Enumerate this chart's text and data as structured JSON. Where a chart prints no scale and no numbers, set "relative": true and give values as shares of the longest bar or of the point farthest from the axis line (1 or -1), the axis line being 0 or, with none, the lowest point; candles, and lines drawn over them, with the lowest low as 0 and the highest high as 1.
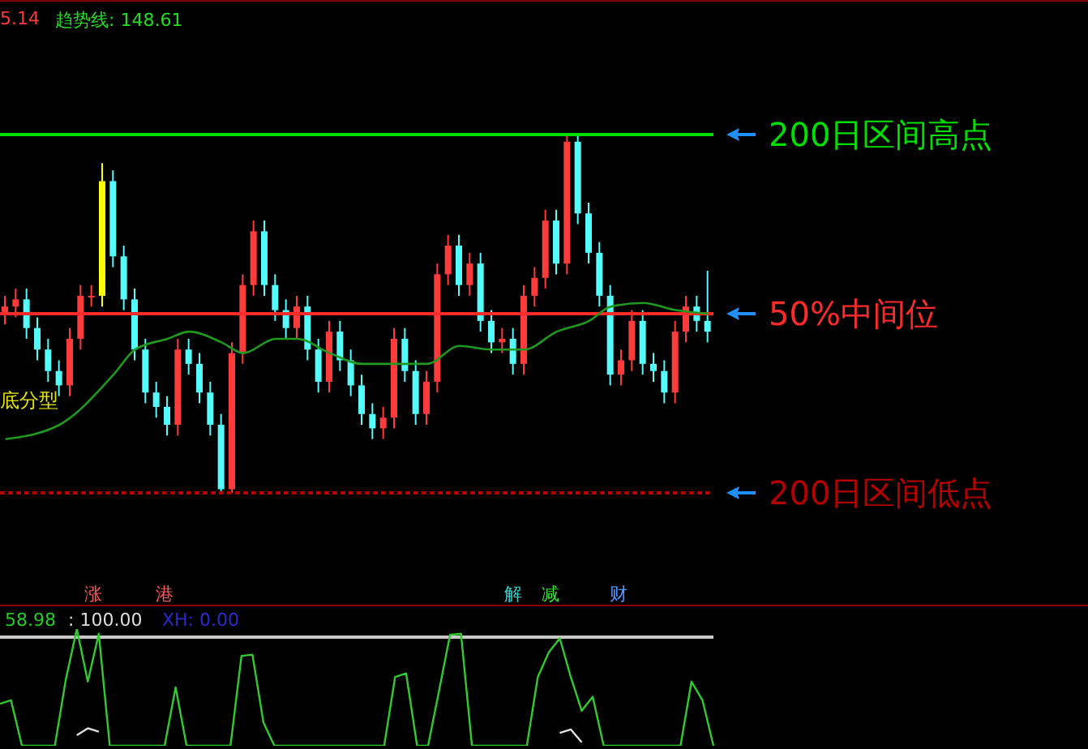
{
  "chart_data": [
    {
      "type": "candlestick",
      "relative": true,
      "categories": [
        null,
        null,
        null,
        null,
        null,
        null,
        null,
        null,
        null,
        null,
        null,
        null,
        null,
        null,
        null,
        null,
        null,
        null,
        null,
        null,
        null,
        null,
        null,
        null,
        null,
        null,
        null,
        null,
        null,
        null,
        null,
        null,
        null,
        null,
        null,
        null,
        null,
        null,
        null,
        null,
        null,
        null,
        null,
        null,
        null,
        null,
        null,
        null,
        null,
        null,
        null,
        null,
        null,
        null,
        null,
        null,
        null,
        null,
        null,
        null,
        null,
        null,
        null,
        null,
        null,
        null
      ],
      "ohlc": [
        [
          0.5,
          0.55,
          0.47,
          0.52
        ],
        [
          0.52,
          0.57,
          0.49,
          0.54
        ],
        [
          0.54,
          0.57,
          0.43,
          0.46
        ],
        [
          0.46,
          0.49,
          0.37,
          0.4
        ],
        [
          0.4,
          0.43,
          0.31,
          0.34
        ],
        [
          0.34,
          0.37,
          0.27,
          0.3
        ],
        [
          0.3,
          0.46,
          0.27,
          0.43
        ],
        [
          0.43,
          0.58,
          0.4,
          0.55
        ],
        [
          0.55,
          0.58,
          0.52,
          0.55
        ],
        [
          0.55,
          0.92,
          0.52,
          0.87
        ],
        [
          0.87,
          0.9,
          0.63,
          0.66
        ],
        [
          0.66,
          0.69,
          0.51,
          0.54
        ],
        [
          0.54,
          0.57,
          0.37,
          0.4
        ],
        [
          0.4,
          0.43,
          0.25,
          0.28
        ],
        [
          0.28,
          0.31,
          0.21,
          0.24
        ],
        [
          0.24,
          0.27,
          0.16,
          0.19
        ],
        [
          0.19,
          0.43,
          0.16,
          0.4
        ],
        [
          0.4,
          0.43,
          0.33,
          0.36
        ],
        [
          0.36,
          0.39,
          0.25,
          0.28
        ],
        [
          0.28,
          0.31,
          0.16,
          0.19
        ],
        [
          0.19,
          0.22,
          0.0,
          0.01
        ],
        [
          0.01,
          0.42,
          0.0,
          0.39
        ],
        [
          0.39,
          0.61,
          0.36,
          0.58
        ],
        [
          0.58,
          0.76,
          0.55,
          0.73
        ],
        [
          0.73,
          0.76,
          0.55,
          0.58
        ],
        [
          0.58,
          0.61,
          0.48,
          0.51
        ],
        [
          0.51,
          0.54,
          0.43,
          0.46
        ],
        [
          0.46,
          0.55,
          0.43,
          0.52
        ],
        [
          0.52,
          0.55,
          0.37,
          0.4
        ],
        [
          0.4,
          0.43,
          0.28,
          0.31
        ],
        [
          0.31,
          0.48,
          0.28,
          0.45
        ],
        [
          0.45,
          0.48,
          0.34,
          0.37
        ],
        [
          0.37,
          0.4,
          0.27,
          0.3
        ],
        [
          0.3,
          0.33,
          0.19,
          0.22
        ],
        [
          0.22,
          0.25,
          0.15,
          0.18
        ],
        [
          0.18,
          0.24,
          0.15,
          0.21
        ],
        [
          0.21,
          0.46,
          0.18,
          0.43
        ],
        [
          0.43,
          0.46,
          0.31,
          0.34
        ],
        [
          0.34,
          0.37,
          0.19,
          0.22
        ],
        [
          0.22,
          0.34,
          0.19,
          0.31
        ],
        [
          0.31,
          0.64,
          0.28,
          0.61
        ],
        [
          0.61,
          0.72,
          0.58,
          0.69
        ],
        [
          0.69,
          0.72,
          0.55,
          0.58
        ],
        [
          0.58,
          0.67,
          0.55,
          0.64
        ],
        [
          0.64,
          0.67,
          0.45,
          0.48
        ],
        [
          0.48,
          0.51,
          0.39,
          0.42
        ],
        [
          0.42,
          0.46,
          0.39,
          0.43
        ],
        [
          0.43,
          0.46,
          0.33,
          0.36
        ],
        [
          0.36,
          0.58,
          0.33,
          0.55
        ],
        [
          0.55,
          0.63,
          0.52,
          0.6
        ],
        [
          0.6,
          0.79,
          0.57,
          0.76
        ],
        [
          0.76,
          0.79,
          0.61,
          0.64
        ],
        [
          0.64,
          1.0,
          0.61,
          0.98
        ],
        [
          0.98,
          1.0,
          0.75,
          0.78
        ],
        [
          0.78,
          0.81,
          0.64,
          0.67
        ],
        [
          0.67,
          0.7,
          0.52,
          0.55
        ],
        [
          0.55,
          0.58,
          0.3,
          0.33
        ],
        [
          0.33,
          0.4,
          0.3,
          0.37
        ],
        [
          0.37,
          0.51,
          0.34,
          0.48
        ],
        [
          0.48,
          0.51,
          0.33,
          0.36
        ],
        [
          0.36,
          0.39,
          0.31,
          0.34
        ],
        [
          0.34,
          0.37,
          0.25,
          0.28
        ],
        [
          0.28,
          0.48,
          0.25,
          0.45
        ],
        [
          0.45,
          0.55,
          0.42,
          0.52
        ],
        [
          0.52,
          0.55,
          0.45,
          0.48
        ],
        [
          0.48,
          0.62,
          0.42,
          0.45
        ]
      ],
      "colors": [
        "#ff3b3b",
        "#ff3b3b",
        "#54fcfc",
        "#54fcfc",
        "#54fcfc",
        "#54fcfc",
        "#ff3b3b",
        "#ff3b3b",
        "#ff3b3b",
        "#ffff00",
        "#54fcfc",
        "#54fcfc",
        "#54fcfc",
        "#54fcfc",
        "#54fcfc",
        "#54fcfc",
        "#ff3b3b",
        "#54fcfc",
        "#54fcfc",
        "#54fcfc",
        "#54fcfc",
        "#ff3b3b",
        "#ff3b3b",
        "#ff3b3b",
        "#54fcfc",
        "#54fcfc",
        "#54fcfc",
        "#ff3b3b",
        "#54fcfc",
        "#54fcfc",
        "#ff3b3b",
        "#54fcfc",
        "#54fcfc",
        "#54fcfc",
        "#54fcfc",
        "#ff3b3b",
        "#ff3b3b",
        "#54fcfc",
        "#54fcfc",
        "#ff3b3b",
        "#ff3b3b",
        "#ff3b3b",
        "#54fcfc",
        "#ff3b3b",
        "#54fcfc",
        "#54fcfc",
        "#ff3b3b",
        "#54fcfc",
        "#ff3b3b",
        "#ff3b3b",
        "#ff3b3b",
        "#54fcfc",
        "#ff3b3b",
        "#54fcfc",
        "#54fcfc",
        "#54fcfc",
        "#54fcfc",
        "#ff3b3b",
        "#ff3b3b",
        "#54fcfc",
        "#54fcfc",
        "#54fcfc",
        "#ff3b3b",
        "#ff3b3b",
        "#54fcfc",
        "#54fcfc"
      ],
      "series": [
        {
          "type": "line",
          "color": "#1f9a1f",
          "values": [
            0.15,
            null,
            null,
            null,
            null,
            0.19,
            null,
            null,
            null,
            null,
            0.33,
            null,
            0.4,
            null,
            null,
            0.43,
            null,
            0.45,
            null,
            null,
            0.42,
            null,
            0.39,
            null,
            null,
            0.43,
            null,
            0.43,
            null,
            null,
            0.39,
            null,
            null,
            0.36,
            null,
            null,
            0.36,
            null,
            null,
            0.36,
            null,
            null,
            0.41,
            null,
            null,
            0.4,
            null,
            null,
            0.4,
            null,
            null,
            0.45,
            null,
            null,
            0.48,
            null,
            0.52,
            null,
            null,
            0.53,
            null,
            null,
            0.51,
            null,
            null,
            0.5
          ]
        }
      ],
      "ref_lines": [
        {
          "axis": "y",
          "value": 1,
          "label": "200日区间高点",
          "color": "#00e000",
          "line_style": "solid"
        },
        {
          "axis": "y",
          "value": 0.5,
          "label": "50%中间位",
          "color": "#ff2a2a",
          "line_style": "solid"
        },
        {
          "axis": "y",
          "value": 0,
          "label": "200日区间低点",
          "color": "#b40000",
          "line_style": "dashed"
        }
      ],
      "annotations": [
        "5.14",
        "趋势线: 148.61",
        "底分型",
        "涨",
        "港",
        "解",
        "减",
        "财"
      ]
    },
    {
      "type": "line",
      "relative": true,
      "categories": [
        null,
        null,
        null,
        null,
        null,
        null,
        null,
        null,
        null,
        null,
        null,
        null,
        null,
        null,
        null,
        null,
        null,
        null,
        null,
        null,
        null,
        null,
        null,
        null,
        null,
        null,
        null,
        null,
        null,
        null,
        null,
        null,
        null,
        null,
        null,
        null,
        null,
        null,
        null,
        null,
        null,
        null,
        null,
        null,
        null,
        null,
        null,
        null,
        null,
        null,
        null,
        null,
        null,
        null,
        null,
        null,
        null,
        null,
        null,
        null,
        null,
        null,
        null,
        null,
        null,
        null
      ],
      "series": [
        {
          "color": "#2ecc2e",
          "values": [
            0.36,
            0.39,
            0,
            0,
            0,
            0,
            0.57,
            1,
            0.55,
            0.96,
            0,
            0,
            0,
            0,
            0,
            0,
            0.5,
            0,
            0,
            0,
            0,
            0,
            0.77,
            0.78,
            0.2,
            0,
            0,
            0,
            0,
            0,
            0,
            0,
            0,
            0,
            0,
            0,
            0.59,
            0.62,
            0,
            0,
            0.47,
            0.95,
            0.96,
            0,
            0,
            0,
            0,
            0,
            0,
            0.59,
            0.8,
            0.92,
            0.59,
            0.3,
            0.42,
            0,
            0,
            0,
            0,
            0,
            0,
            0,
            0,
            0.55,
            0.39,
            0
          ]
        },
        {
          "color": "#e0e0e0",
          "values": [
            null,
            null,
            null,
            null,
            null,
            null,
            null,
            0.09,
            0.15,
            0.12,
            null,
            null,
            null,
            null,
            null,
            null,
            null,
            null,
            null,
            null,
            null,
            null,
            null,
            null,
            null,
            null,
            null,
            null,
            null,
            null,
            null,
            null,
            null,
            null,
            null,
            null,
            null,
            null,
            null,
            null,
            null,
            null,
            null,
            null,
            null,
            null,
            null,
            null,
            null,
            null,
            null,
            0.11,
            0.14,
            0.03,
            null,
            null,
            null,
            null,
            null,
            null,
            null,
            null,
            null,
            null,
            null,
            null
          ]
        }
      ],
      "ref_lines": [
        {
          "axis": "y",
          "value": 0.93,
          "color": "#c8c8c8",
          "line_style": "solid"
        }
      ],
      "annotations": [
        "58.98",
        ": 100.00",
        "XH: 0.00"
      ]
    }
  ]
}
